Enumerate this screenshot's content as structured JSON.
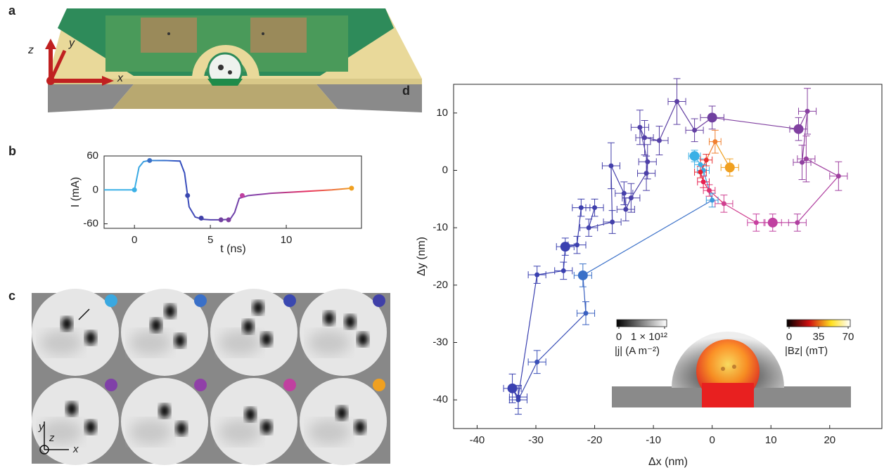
{
  "panel_labels": [
    "a",
    "b",
    "c",
    "d"
  ],
  "panel_a": {
    "axis_labels": [
      "z",
      "y",
      "x"
    ]
  },
  "panel_c": {
    "axis_labels": [
      "y",
      "z",
      "x"
    ]
  },
  "chart_data": [
    {
      "type": "line",
      "y_label": "I (mA)",
      "x_label": "t (ns)",
      "x": [
        -2,
        0,
        0.3,
        0.6,
        1,
        2,
        3,
        3.3,
        3.6,
        4,
        4.5,
        5,
        5.7,
        6.3,
        6.6,
        6.9,
        7.5,
        9,
        11,
        13,
        14.3
      ],
      "values": [
        0,
        0,
        40,
        50,
        52,
        52,
        51,
        30,
        -30,
        -48,
        -52,
        -53,
        -53,
        -52,
        -40,
        -15,
        -10,
        -6,
        -3,
        0,
        3
      ],
      "gradient": [
        "#3ab0e6",
        "#3050c0",
        "#6040a8",
        "#9040a8",
        "#e83060",
        "#f0a020"
      ],
      "markers": {
        "x": [
          0,
          1,
          3.5,
          4.4,
          5.7,
          6.2,
          7.1,
          14.3
        ],
        "values": [
          0,
          52,
          -10,
          -50,
          -53,
          -53,
          -10,
          3
        ],
        "colors": [
          "#3ab0e6",
          "#3a70c8",
          "#3a48b0",
          "#4040a8",
          "#7040a0",
          "#8040a0",
          "#c040a0",
          "#f0a020"
        ]
      },
      "xlim": [
        -2,
        15
      ],
      "ylim": [
        -68,
        60
      ],
      "xticks": [
        0,
        5,
        10
      ],
      "yticks": [
        -60,
        0,
        60
      ]
    },
    {
      "type": "scatter",
      "x_label": "Δx (nm)",
      "y_label": "Δy (nm)",
      "series": [
        {
          "x": [
            -3,
            -2,
            -1.5,
            0,
            -22,
            -21.5,
            -29.8,
            -33,
            -34,
            -33,
            -29.8,
            -25.3,
            -25,
            -23,
            -22.3,
            -20,
            -21,
            -17,
            -17.2,
            -15,
            -14.7,
            -13.8,
            -11.2,
            -11,
            -12.3,
            -11.5,
            -9,
            -6,
            -3,
            0,
            14.7,
            16.2,
            15.3,
            16,
            21.5,
            14.5,
            10.3,
            7.5,
            2,
            -0.5,
            -1.5,
            -2,
            -1,
            0.5,
            3
          ],
          "values": [
            2.5,
            1,
            0,
            -5.2,
            -18.3,
            -24.9,
            -33.4,
            -40,
            -38,
            -39.5,
            -18.2,
            -17.5,
            -13.3,
            -13,
            -6.5,
            -6.5,
            -10,
            -9,
            0.8,
            -4,
            -6.8,
            -4.8,
            -0.5,
            1.5,
            7.5,
            5.7,
            5.2,
            12,
            7,
            9.2,
            7.2,
            10.3,
            1.4,
            2,
            -1,
            -9.1,
            -9.1,
            -9.1,
            -5.8,
            -3.5,
            -2,
            -0.3,
            1.8,
            5,
            0.5
          ],
          "xerr": [
            1,
            1,
            1,
            1,
            1.5,
            1.5,
            1.5,
            1.5,
            1.5,
            1.5,
            1.5,
            1.5,
            1.5,
            1.5,
            1.5,
            1.5,
            1.5,
            1.5,
            1.5,
            1.5,
            1.5,
            1.5,
            1.5,
            1.5,
            1.5,
            1.5,
            1.5,
            1.5,
            1.5,
            2,
            1.5,
            1.5,
            1.5,
            1.5,
            1.5,
            1.5,
            1.5,
            1.5,
            1.5,
            1,
            1,
            1,
            1,
            1,
            1.5
          ],
          "yerr": [
            1,
            1,
            1,
            1.2,
            2,
            2,
            2,
            2.5,
            2.5,
            2,
            1.5,
            1.5,
            1.5,
            1.5,
            1.5,
            1.5,
            1.5,
            2,
            4,
            2,
            2,
            2.5,
            3,
            3,
            3,
            3,
            2.5,
            4,
            2,
            2,
            2,
            4,
            3,
            4,
            2.5,
            1.5,
            1.5,
            1.5,
            1.5,
            1,
            1,
            1,
            1,
            2,
            1.5
          ],
          "colors": [
            "#3ab0e6",
            "#3ab0e6",
            "#3aa8e2",
            "#3a98dc",
            "#3a70c8",
            "#3a60c0",
            "#3a50b8",
            "#3a48b0",
            "#3a40b0",
            "#3a40b0",
            "#3a40b0",
            "#3a40b0",
            "#3a40b0",
            "#3c40ae",
            "#3e40ae",
            "#4040ac",
            "#4040ac",
            "#4240aa",
            "#4440aa",
            "#4640aa",
            "#4840a8",
            "#4a40a8",
            "#4c40a8",
            "#4e40a8",
            "#5040a8",
            "#5240a6",
            "#5440a6",
            "#5c40a4",
            "#6440a2",
            "#7040a0",
            "#8040a0",
            "#8840a0",
            "#9040a0",
            "#9840a0",
            "#a040a0",
            "#b040a0",
            "#c040a0",
            "#c840a0",
            "#d04090",
            "#e03070",
            "#e82050",
            "#e82030",
            "#e83030",
            "#f08030",
            "#f0a020"
          ],
          "large_markers": [
            0,
            4,
            8,
            12,
            29,
            30,
            36,
            44
          ]
        }
      ],
      "xlim": [
        -44,
        29
      ],
      "ylim": [
        -45,
        15
      ],
      "xticks": [
        -40,
        -30,
        -20,
        -10,
        0,
        10,
        20
      ],
      "yticks": [
        -40,
        -30,
        -20,
        -10,
        0,
        10
      ]
    }
  ],
  "colorbars": [
    {
      "lim": [
        0,
        1000000000000
      ],
      "ticks": [
        0,
        {
          "value": 1000000000000,
          "label": "1 × 10¹²"
        }
      ],
      "label": "|j| (A m⁻²)"
    },
    {
      "lim": [
        0,
        70
      ],
      "ticks": [
        0,
        35,
        70
      ],
      "label": "|Bz| (mT)"
    }
  ]
}
